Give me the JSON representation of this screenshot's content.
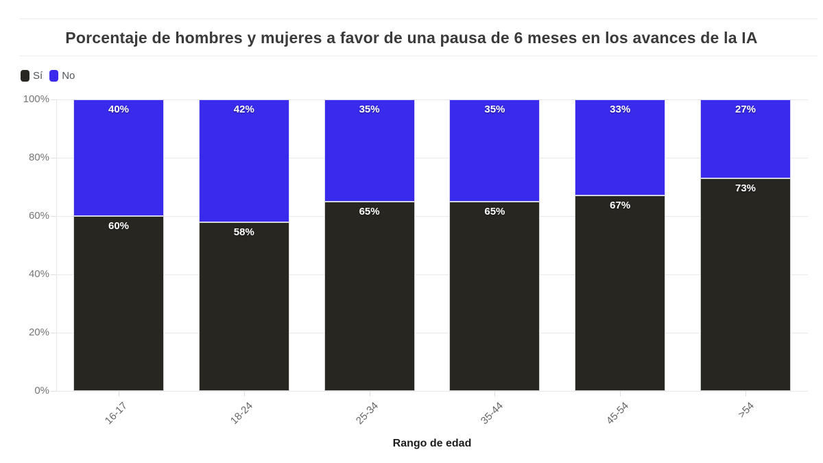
{
  "title": "Porcentaje de hombres y mujeres a favor de una pausa de 6 meses en los avances de la IA",
  "legend": {
    "items": [
      {
        "label": "Sí",
        "color": "#272621"
      },
      {
        "label": "No",
        "color": "#3a2bec"
      }
    ]
  },
  "colors": {
    "si_bar": "#272621",
    "no_bar": "#3a2bec",
    "title_text": "#3a3a3a",
    "grid": "#e9e9e9",
    "tick_text": "#757575"
  },
  "chart_data": {
    "type": "bar",
    "stacked": true,
    "title": "Porcentaje de hombres y mujeres a favor de una pausa de 6 meses en los avances de la IA",
    "categories": [
      "16-17",
      "18-24",
      "25-34",
      "35-44",
      "45-54",
      ">54"
    ],
    "series": [
      {
        "name": "Sí",
        "color": "#272621",
        "values": [
          60,
          58,
          65,
          65,
          67,
          73
        ]
      },
      {
        "name": "No",
        "color": "#3a2bec",
        "values": [
          40,
          42,
          35,
          35,
          33,
          27
        ]
      }
    ],
    "value_label_suffix": "%",
    "xlabel": "Rango de edad",
    "ylabel": "",
    "ylim": [
      0,
      100
    ],
    "yticks": [
      "0%",
      "20%",
      "40%",
      "60%",
      "80%",
      "100%"
    ],
    "grid": true,
    "legend_position": "top-left"
  }
}
